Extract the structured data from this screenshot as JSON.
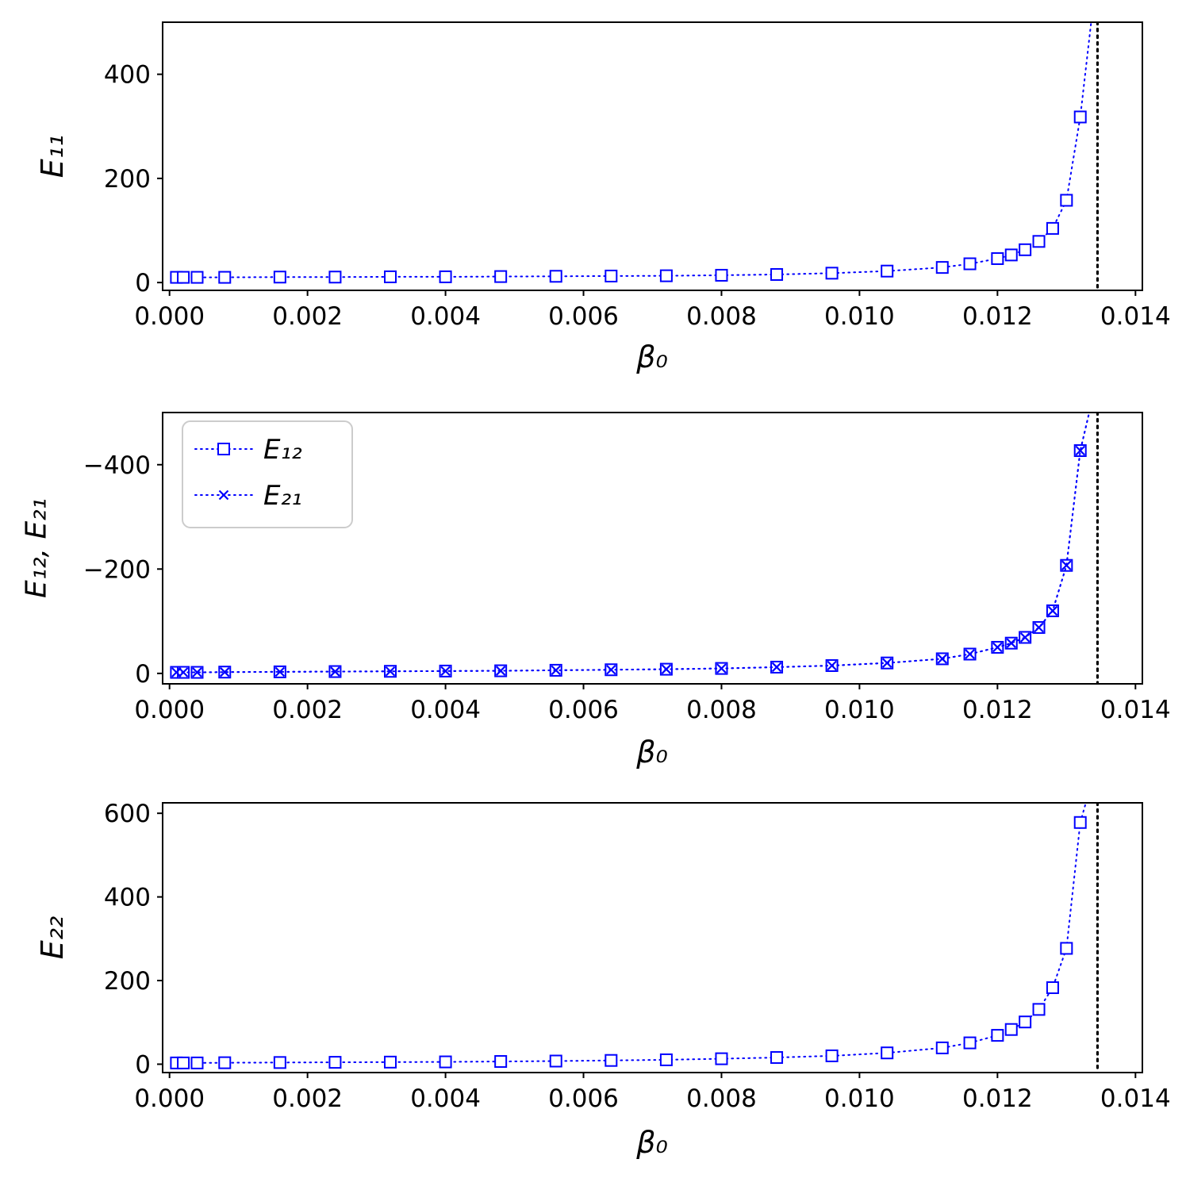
{
  "figure": {
    "background": "#ffffff",
    "series_color": "#0000ff",
    "vline_color": "#000000"
  },
  "chart_data": [
    {
      "type": "line",
      "name": "E11-vs-beta0",
      "ylabel": "E₁₁",
      "xlabel": "β₀",
      "xlim": [
        -0.0001,
        0.0141
      ],
      "ylim_bottom": -15,
      "ylim_top": 500,
      "xticks": [
        0.0,
        0.002,
        0.004,
        0.006,
        0.008,
        0.01,
        0.012,
        0.014
      ],
      "xtick_labels": [
        "0.000",
        "0.002",
        "0.004",
        "0.006",
        "0.008",
        "0.010",
        "0.012",
        "0.014"
      ],
      "yticks": [
        0,
        200,
        400
      ],
      "ytick_labels": [
        "0",
        "200",
        "400"
      ],
      "vline_x": 0.01345,
      "x": [
        0.0001,
        0.0002,
        0.0004,
        0.0008,
        0.0016,
        0.0024,
        0.0032,
        0.004,
        0.0048,
        0.0056,
        0.0064,
        0.0072,
        0.008,
        0.0088,
        0.0096,
        0.0104,
        0.0112,
        0.0116,
        0.012,
        0.0122,
        0.0124,
        0.0126,
        0.0128,
        0.013,
        0.0132
      ],
      "series": [
        {
          "name": "E11",
          "label": "E₁₁",
          "marker": "square",
          "color": "#0000ff",
          "values": [
            10,
            10,
            10,
            10,
            10.5,
            10.5,
            11,
            11,
            11.5,
            12,
            12.5,
            13,
            14,
            15.5,
            18,
            22,
            29,
            36,
            46,
            53,
            63,
            79,
            104,
            158,
            318
          ],
          "tail_y": 560
        }
      ],
      "legend": null
    },
    {
      "type": "line",
      "name": "E12-E21-vs-beta0",
      "ylabel": "E₁₂, E₂₁",
      "xlabel": "β₀",
      "xlim": [
        -0.0001,
        0.0141
      ],
      "ylim_bottom": 20,
      "ylim_top": -500,
      "xticks": [
        0.0,
        0.002,
        0.004,
        0.006,
        0.008,
        0.01,
        0.012,
        0.014
      ],
      "xtick_labels": [
        "0.000",
        "0.002",
        "0.004",
        "0.006",
        "0.008",
        "0.010",
        "0.012",
        "0.014"
      ],
      "yticks": [
        -400,
        -200,
        0
      ],
      "ytick_labels": [
        "−400",
        "−200",
        "0"
      ],
      "vline_x": 0.01345,
      "x": [
        0.0001,
        0.0002,
        0.0004,
        0.0008,
        0.0016,
        0.0024,
        0.0032,
        0.004,
        0.0048,
        0.0056,
        0.0064,
        0.0072,
        0.008,
        0.0088,
        0.0096,
        0.0104,
        0.0112,
        0.0116,
        0.012,
        0.0122,
        0.0124,
        0.0126,
        0.0128,
        0.013,
        0.0132
      ],
      "series": [
        {
          "name": "E12",
          "label": "E₁₂",
          "marker": "square",
          "color": "#0000ff",
          "values": [
            -2,
            -2,
            -2,
            -2.5,
            -3,
            -3.5,
            -4,
            -4.5,
            -5,
            -6,
            -7,
            -8,
            -9.5,
            -12,
            -15,
            -20,
            -28,
            -37,
            -50,
            -58,
            -69,
            -88,
            -120,
            -207,
            -427
          ],
          "tail_y": -545
        },
        {
          "name": "E21",
          "label": "E₂₁",
          "marker": "x",
          "color": "#0000ff",
          "values": [
            -2,
            -2,
            -2,
            -2.5,
            -3,
            -3.5,
            -4,
            -4.5,
            -5,
            -6,
            -7,
            -8,
            -9.5,
            -12,
            -15,
            -20,
            -28,
            -37,
            -50,
            -58,
            -69,
            -88,
            -120,
            -207,
            -427
          ],
          "tail_y": -545
        }
      ],
      "legend": {
        "position": "upper-left",
        "entries": [
          {
            "label": "E₁₂",
            "marker": "square"
          },
          {
            "label": "E₂₁",
            "marker": "x"
          }
        ]
      }
    },
    {
      "type": "line",
      "name": "E22-vs-beta0",
      "ylabel": "E₂₂",
      "xlabel": "β₀",
      "xlim": [
        -0.0001,
        0.0141
      ],
      "ylim_bottom": -20,
      "ylim_top": 625,
      "xticks": [
        0.0,
        0.002,
        0.004,
        0.006,
        0.008,
        0.01,
        0.012,
        0.014
      ],
      "xtick_labels": [
        "0.000",
        "0.002",
        "0.004",
        "0.006",
        "0.008",
        "0.010",
        "0.012",
        "0.014"
      ],
      "yticks": [
        0,
        200,
        400,
        600
      ],
      "ytick_labels": [
        "0",
        "200",
        "400",
        "600"
      ],
      "vline_x": 0.01345,
      "x": [
        0.0001,
        0.0002,
        0.0004,
        0.0008,
        0.0016,
        0.0024,
        0.0032,
        0.004,
        0.0048,
        0.0056,
        0.0064,
        0.0072,
        0.008,
        0.0088,
        0.0096,
        0.0104,
        0.0112,
        0.0116,
        0.012,
        0.0122,
        0.0124,
        0.0126,
        0.0128,
        0.013,
        0.0132
      ],
      "series": [
        {
          "name": "E22",
          "label": "E₂₂",
          "marker": "square",
          "color": "#0000ff",
          "values": [
            3,
            3,
            3,
            3.5,
            4,
            4.5,
            5,
            5.5,
            6.5,
            7.5,
            9,
            10.5,
            13,
            16,
            20,
            27,
            39,
            51,
            69,
            83,
            101,
            131,
            183,
            277,
            578
          ],
          "tail_y": 700
        }
      ],
      "legend": null
    }
  ]
}
